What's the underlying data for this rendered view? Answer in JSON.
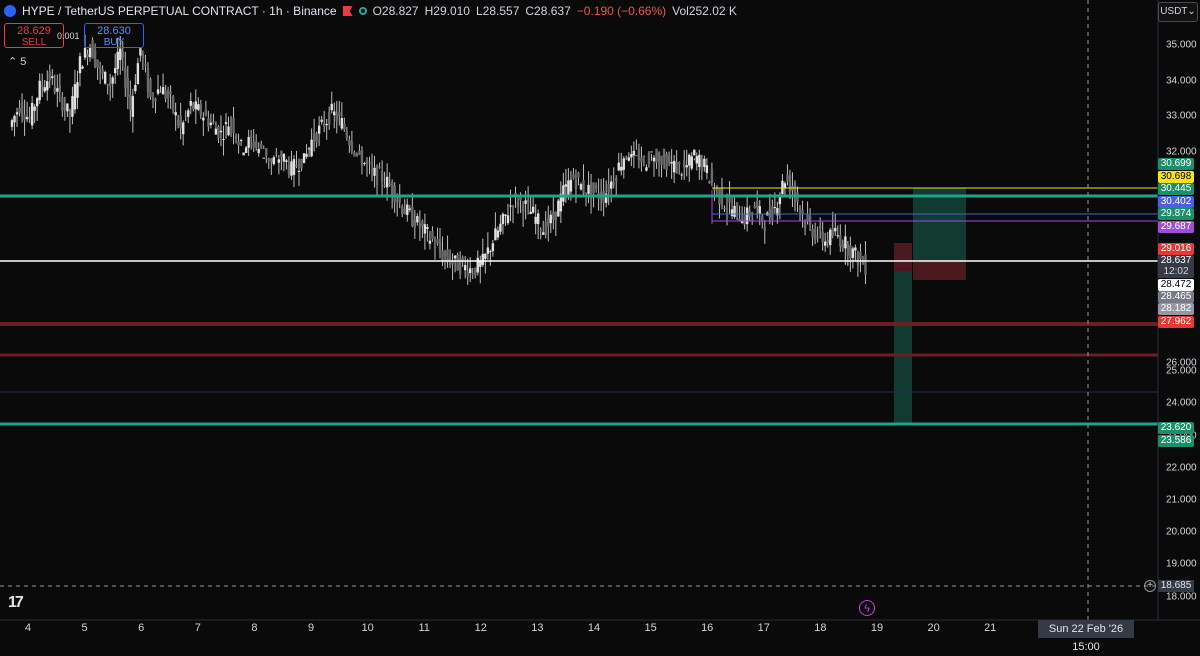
{
  "header": {
    "symbol": "HYPE / TetherUS PERPETUAL CONTRACT · 1h · Binance",
    "open": "O28.827",
    "high": "H29.010",
    "low": "L28.557",
    "close": "C28.637",
    "change": "−0.190 (−0.66%)",
    "volume": "Vol252.02 K"
  },
  "trade": {
    "sell_price": "28.629",
    "sell_label": "SELL",
    "buy_price": "28.630",
    "buy_label": "BUY",
    "spread": "0.001"
  },
  "indicator_toggle": "5",
  "currency": "USDT",
  "x_axis": [
    "4",
    "5",
    "6",
    "7",
    "8",
    "9",
    "10",
    "11",
    "12",
    "13",
    "14",
    "15",
    "16",
    "17",
    "18",
    "19",
    "20",
    "21",
    "22"
  ],
  "crosshair": {
    "time_label": "Sun 22 Feb '26   15:00",
    "price_label": "18.685"
  },
  "price_tags": [
    {
      "value": "30.699",
      "bg": "#1b8f6a",
      "fg": "#ffffff"
    },
    {
      "value": "30.698",
      "bg": "#f5e31d",
      "fg": "#000000"
    },
    {
      "value": "30.445",
      "bg": "#1b8f6a",
      "fg": "#ffffff"
    },
    {
      "value": "30.402",
      "bg": "#4b5fe0",
      "fg": "#ffffff"
    },
    {
      "value": "29.874",
      "bg": "#1b8f6a",
      "fg": "#ffffff"
    },
    {
      "value": "29.687",
      "bg": "#9c4fd6",
      "fg": "#ffffff"
    },
    {
      "value": "29.016",
      "bg": "#e53935",
      "fg": "#ffffff"
    },
    {
      "value": "28.637",
      "bg": "#363a45",
      "fg": "#ffffff"
    },
    {
      "value": "12:02",
      "bg": "#363a45",
      "fg": "#d1d4dc"
    },
    {
      "value": "28.472",
      "bg": "#ffffff",
      "fg": "#000000"
    },
    {
      "value": "28.465",
      "bg": "#787b86",
      "fg": "#ffffff"
    },
    {
      "value": "28.182",
      "bg": "#9598a1",
      "fg": "#ffffff"
    },
    {
      "value": "27.962",
      "bg": "#e53935",
      "fg": "#ffffff"
    },
    {
      "value": "23.620",
      "bg": "#1b8f6a",
      "fg": "#ffffff"
    },
    {
      "value": "23.586",
      "bg": "#1b8f6a",
      "fg": "#ffffff"
    }
  ],
  "colors": {
    "background": "#0a0a0a",
    "candle": "#e0e0e0",
    "teal": "#1fa38a",
    "red_level": "#6b1f24",
    "profit": "#113a31",
    "loss": "#4a1a1f"
  },
  "chart_data": {
    "type": "candlestick",
    "y_ticks": [
      "35.000",
      "34.000",
      "33.000",
      "32.000",
      "26.000",
      "25.000",
      "24.000",
      "23.000",
      "22.000",
      "21.000",
      "20.000",
      "19.000",
      "18.000"
    ],
    "ylim": [
      17.7,
      35.5
    ],
    "x_categories": [
      "4",
      "5",
      "6",
      "7",
      "8",
      "9",
      "10",
      "11",
      "12",
      "13",
      "14",
      "15",
      "16",
      "17",
      "18",
      "19",
      "20",
      "21",
      "22"
    ],
    "horizontal_levels": [
      {
        "price": 30.41,
        "color": "#1fa38a"
      },
      {
        "price": 28.47,
        "color": "#ffffff"
      },
      {
        "price": 26.6,
        "color": "#6b1f24"
      },
      {
        "price": 25.65,
        "color": "#6b1f24"
      },
      {
        "price": 24.55,
        "color": "#2a2a55"
      },
      {
        "price": 23.6,
        "color": "#1fa38a"
      }
    ],
    "close_path": [
      32.7,
      33.3,
      32.9,
      33.8,
      34.1,
      33.5,
      33.0,
      34.5,
      35.0,
      34.2,
      33.9,
      34.8,
      33.2,
      34.9,
      33.5,
      33.8,
      33.4,
      32.6,
      33.3,
      33.1,
      32.8,
      32.5,
      32.9,
      32.1,
      32.3,
      32.0,
      31.4,
      31.6,
      31.2,
      31.5,
      32.3,
      32.7,
      33.1,
      32.8,
      32.2,
      31.5,
      31.1,
      31.0,
      30.7,
      30.2,
      29.9,
      29.6,
      29.3,
      28.9,
      28.7,
      28.6,
      28.5,
      28.7,
      29.3,
      29.8,
      30.4,
      30.3,
      30.0,
      29.6,
      29.9,
      30.6,
      31.0,
      30.7,
      30.6,
      30.5,
      31.0,
      31.6,
      31.8,
      31.4,
      31.7,
      31.5,
      31.3,
      31.2,
      31.6,
      31.3,
      30.7,
      30.3,
      30.1,
      29.9,
      30.2,
      29.8,
      30.2,
      31.0,
      30.6,
      29.8,
      29.5,
      29.3,
      29.5,
      29.2,
      28.9,
      28.6
    ]
  }
}
